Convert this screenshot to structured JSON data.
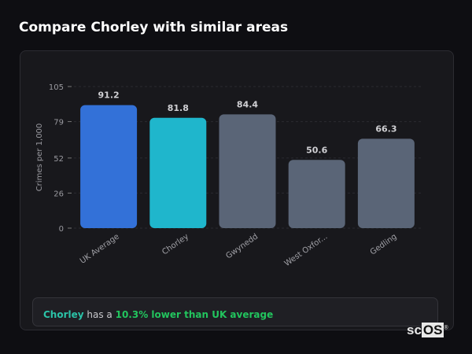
{
  "title": "Compare Chorley with similar areas",
  "chart_data": {
    "type": "bar",
    "categories": [
      "UK Average",
      "Chorley",
      "Gwynedd",
      "West Oxfor...",
      "Gedling"
    ],
    "values": [
      91.2,
      81.8,
      84.4,
      50.6,
      66.3
    ],
    "value_labels": [
      "91.2",
      "81.8",
      "84.4",
      "50.6",
      "66.3"
    ],
    "colors": [
      "#3371d8",
      "#1fb6cc",
      "#5a6577",
      "#5a6577",
      "#5a6577"
    ],
    "ylabel": "Crimes per 1,000",
    "xlabel": "",
    "ylim": [
      0,
      105
    ],
    "yticks": [
      0,
      26,
      52,
      79,
      105
    ],
    "grid": true
  },
  "summary": {
    "area": "Chorley",
    "middle": " has a ",
    "comparison": "10.3% lower than UK average"
  },
  "logo": {
    "text_a": "sc",
    "text_b": "OS",
    "mark": "®"
  }
}
